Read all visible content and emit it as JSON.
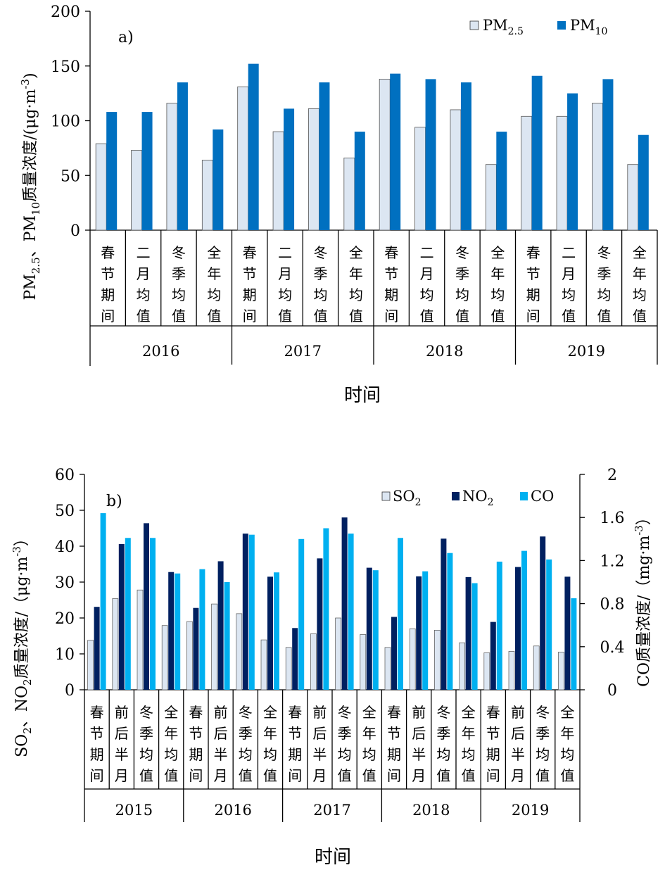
{
  "chart_data": [
    {
      "type": "bar",
      "panel_label": "a)",
      "ylabel": "PM2.5、PM10质量浓度/(μg·m-3)",
      "ylabel_parts": {
        "p1": "PM",
        "s1": "2.5",
        "p2": "、PM",
        "s2": "10",
        "p3": "质量浓度/(μg·m",
        "sup": "-3",
        "p4": ")"
      },
      "xlabel": "时间",
      "ylim": [
        0,
        200
      ],
      "yticks": [
        0,
        50,
        100,
        150,
        200
      ],
      "years": [
        "2016",
        "2017",
        "2018",
        "2019"
      ],
      "categories": [
        "春节期间",
        "二月均值",
        "冬季均值",
        "全年均值",
        "春节期间",
        "二月均值",
        "冬季均值",
        "全年均值",
        "春节期间",
        "二月均值",
        "冬季均值",
        "全年均值",
        "春节期间",
        "二月均值",
        "冬季均值",
        "全年均值"
      ],
      "legend_position": "top-right",
      "series": [
        {
          "name": "PM2.5",
          "base": "PM",
          "sub": "2.5",
          "color": "#dce6f2",
          "values": [
            79,
            73,
            116,
            64,
            131,
            90,
            111,
            66,
            138,
            94,
            110,
            60,
            104,
            104,
            116,
            60
          ]
        },
        {
          "name": "PM10",
          "base": "PM",
          "sub": "10",
          "color": "#0070c0",
          "values": [
            108,
            108,
            135,
            92,
            152,
            111,
            135,
            90,
            143,
            138,
            135,
            90,
            141,
            125,
            138,
            87
          ]
        }
      ]
    },
    {
      "type": "bar",
      "panel_label": "b)",
      "ylabel": "SO2、NO2质量浓度/（μg·m-3）",
      "ylabel_parts": {
        "p1": "SO",
        "s1": "2",
        "p2": "、NO",
        "s2": "2",
        "p3": "质量浓度/（μg·m",
        "sup": "-3",
        "p4": "）"
      },
      "ylabel_right": "CO质量浓度/（mg·m-3）",
      "ylabel_right_parts": {
        "p1": "CO质量浓度/（mg·m",
        "sup": "-3",
        "p2": "）"
      },
      "xlabel": "时间",
      "ylim": [
        0,
        60
      ],
      "yticks": [
        0,
        10,
        20,
        30,
        40,
        50,
        60
      ],
      "ylim_right": [
        0,
        2
      ],
      "yticks_right": [
        "0",
        "0.4",
        "0.8",
        "1.2",
        "1.6",
        "2"
      ],
      "years": [
        "2015",
        "2016",
        "2017",
        "2018",
        "2019"
      ],
      "categories": [
        "春节期间",
        "前后半月",
        "冬季均值",
        "全年均值",
        "春节期间",
        "前后半月",
        "冬季均值",
        "全年均值",
        "春节期间",
        "前后半月",
        "冬季均值",
        "全年均值",
        "春节期间",
        "前后半月",
        "冬季均值",
        "全年均值",
        "春节期间",
        "前后半月",
        "冬季均值",
        "全年均值"
      ],
      "legend_position": "top-right",
      "series": [
        {
          "name": "SO2",
          "base": "SO",
          "sub": "2",
          "color": "#dce6f2",
          "axis": "left",
          "values": [
            13.8,
            25.4,
            27.8,
            17.9,
            19.0,
            23.9,
            21.2,
            13.9,
            11.8,
            15.6,
            20.0,
            15.4,
            11.8,
            17.0,
            16.6,
            13.1,
            10.3,
            10.7,
            12.2,
            10.5
          ]
        },
        {
          "name": "NO2",
          "base": "NO",
          "sub": "2",
          "color": "#002060",
          "axis": "left",
          "values": [
            23.1,
            40.6,
            46.4,
            32.8,
            22.8,
            35.8,
            43.5,
            31.5,
            17.2,
            36.6,
            48.0,
            34.0,
            20.3,
            31.6,
            42.1,
            31.4,
            18.9,
            34.2,
            42.7,
            31.5
          ]
        },
        {
          "name": "CO",
          "base": "CO",
          "sub": "",
          "color": "#00b0f0",
          "axis": "right",
          "values": [
            1.64,
            1.41,
            1.41,
            1.08,
            1.12,
            1.0,
            1.44,
            1.09,
            1.4,
            1.5,
            1.45,
            1.11,
            1.41,
            1.1,
            1.27,
            0.99,
            1.19,
            1.29,
            1.21,
            0.85
          ]
        }
      ]
    }
  ]
}
